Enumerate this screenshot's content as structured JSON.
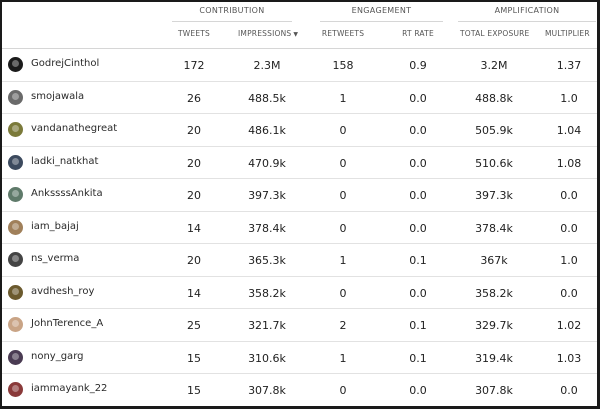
{
  "groups": {
    "contribution": "CONTRIBUTION",
    "engagement": "ENGAGEMENT",
    "amplification": "AMPLIFICATION"
  },
  "columns": {
    "tweets": "TWEETS",
    "impressions": "IMPRESSIONS",
    "impressions_sort": "▼",
    "retweets": "RETWEETS",
    "rt_rate": "RT RATE",
    "total_exposure": "TOTAL EXPOSURE",
    "multiplier": "MULTIPLIER"
  },
  "rows": [
    {
      "handle": "GodrejCinthol",
      "tweets": "172",
      "impressions": "2.3M",
      "retweets": "158",
      "rt_rate": "0.9",
      "total_exposure": "3.2M",
      "multiplier": "1.37",
      "avatar_color": "#1b1b1b"
    },
    {
      "handle": "smojawala",
      "tweets": "26",
      "impressions": "488.5k",
      "retweets": "1",
      "rt_rate": "0.0",
      "total_exposure": "488.8k",
      "multiplier": "1.0",
      "avatar_color": "#6a6a6a"
    },
    {
      "handle": "vandanathegreat",
      "tweets": "20",
      "impressions": "486.1k",
      "retweets": "0",
      "rt_rate": "0.0",
      "total_exposure": "505.9k",
      "multiplier": "1.04",
      "avatar_color": "#7b7a3a"
    },
    {
      "handle": "ladki_natkhat",
      "tweets": "20",
      "impressions": "470.9k",
      "retweets": "0",
      "rt_rate": "0.0",
      "total_exposure": "510.6k",
      "multiplier": "1.08",
      "avatar_color": "#3c4a5e"
    },
    {
      "handle": "AnkssssAnkita",
      "tweets": "20",
      "impressions": "397.3k",
      "retweets": "0",
      "rt_rate": "0.0",
      "total_exposure": "397.3k",
      "multiplier": "0.0",
      "avatar_color": "#5f7a6a"
    },
    {
      "handle": "iam_bajaj",
      "tweets": "14",
      "impressions": "378.4k",
      "retweets": "0",
      "rt_rate": "0.0",
      "total_exposure": "378.4k",
      "multiplier": "0.0",
      "avatar_color": "#a0805a"
    },
    {
      "handle": "ns_verma",
      "tweets": "20",
      "impressions": "365.3k",
      "retweets": "1",
      "rt_rate": "0.1",
      "total_exposure": "367k",
      "multiplier": "1.0",
      "avatar_color": "#444444"
    },
    {
      "handle": "avdhesh_roy",
      "tweets": "14",
      "impressions": "358.2k",
      "retweets": "0",
      "rt_rate": "0.0",
      "total_exposure": "358.2k",
      "multiplier": "0.0",
      "avatar_color": "#6b5a2e"
    },
    {
      "handle": "JohnTerence_A",
      "tweets": "25",
      "impressions": "321.7k",
      "retweets": "2",
      "rt_rate": "0.1",
      "total_exposure": "329.7k",
      "multiplier": "1.02",
      "avatar_color": "#c9a486"
    },
    {
      "handle": "nony_garg",
      "tweets": "15",
      "impressions": "310.6k",
      "retweets": "1",
      "rt_rate": "0.1",
      "total_exposure": "319.4k",
      "multiplier": "1.03",
      "avatar_color": "#4a3b52"
    },
    {
      "handle": "iammayank_22",
      "tweets": "15",
      "impressions": "307.8k",
      "retweets": "0",
      "rt_rate": "0.0",
      "total_exposure": "307.8k",
      "multiplier": "0.0",
      "avatar_color": "#8a3a3a"
    }
  ]
}
